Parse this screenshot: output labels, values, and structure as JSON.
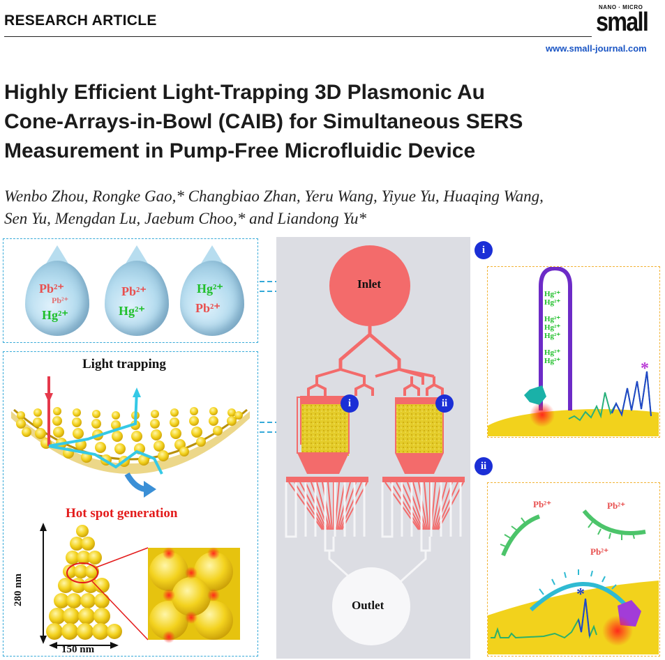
{
  "header": {
    "section_label": "RESEARCH ARTICLE",
    "journal_small": "NANO · MICRO",
    "journal_logo": "small",
    "journal_url": "www.small-journal.com"
  },
  "article": {
    "title_lines": [
      "Highly Efficient Light-Trapping 3D Plasmonic Au",
      "Cone-Arrays-in-Bowl (CAIB) for Simultaneous SERS",
      "Measurement in Pump-Free Microfluidic Device"
    ],
    "authors_lines": [
      "Wenbo Zhou, Rongke Gao,* Changbiao Zhan, Yeru Wang, Yiyue Yu, Huaqing Wang,",
      "Sen Yu, Mengdan Lu, Jaebum Choo,* and Liandong Yu*"
    ]
  },
  "figure": {
    "droplets": [
      {
        "line1": "Pb²⁺",
        "line2": "Pb²⁺",
        "line3": "Hg²⁺"
      },
      {
        "line1": "Pb²⁺",
        "line2": "Hg²⁺"
      },
      {
        "line1": "Hg²⁺",
        "line2": "Pb²⁺"
      }
    ],
    "light_trapping_label": "Light trapping",
    "hot_spot_label": "Hot spot generation",
    "height_label": "280 nm",
    "width_label": "150 nm",
    "inlet_label": "Inlet",
    "outlet_label": "Outlet",
    "chamber_i": "i",
    "chamber_ii": "ii",
    "panel_i_badge": "i",
    "panel_ii_badge": "ii",
    "hairpin_labels": [
      "Hg²⁺",
      "Hg²⁺",
      "Hg²⁺",
      "Hg²⁺",
      "Hg²⁺",
      "Hg²⁺",
      "Hg²⁺"
    ],
    "panel_ii_ions": [
      "Pb²⁺",
      "Pb²⁺",
      "Pb²⁺"
    ],
    "asterisk": "*",
    "colors": {
      "panel_border": "#35a9d8",
      "detail_border": "#f2b233",
      "pb_color": "#e8504f",
      "hg_color": "#1fbf2a",
      "channel": "#f47070",
      "badge": "#1b2fd6"
    }
  }
}
